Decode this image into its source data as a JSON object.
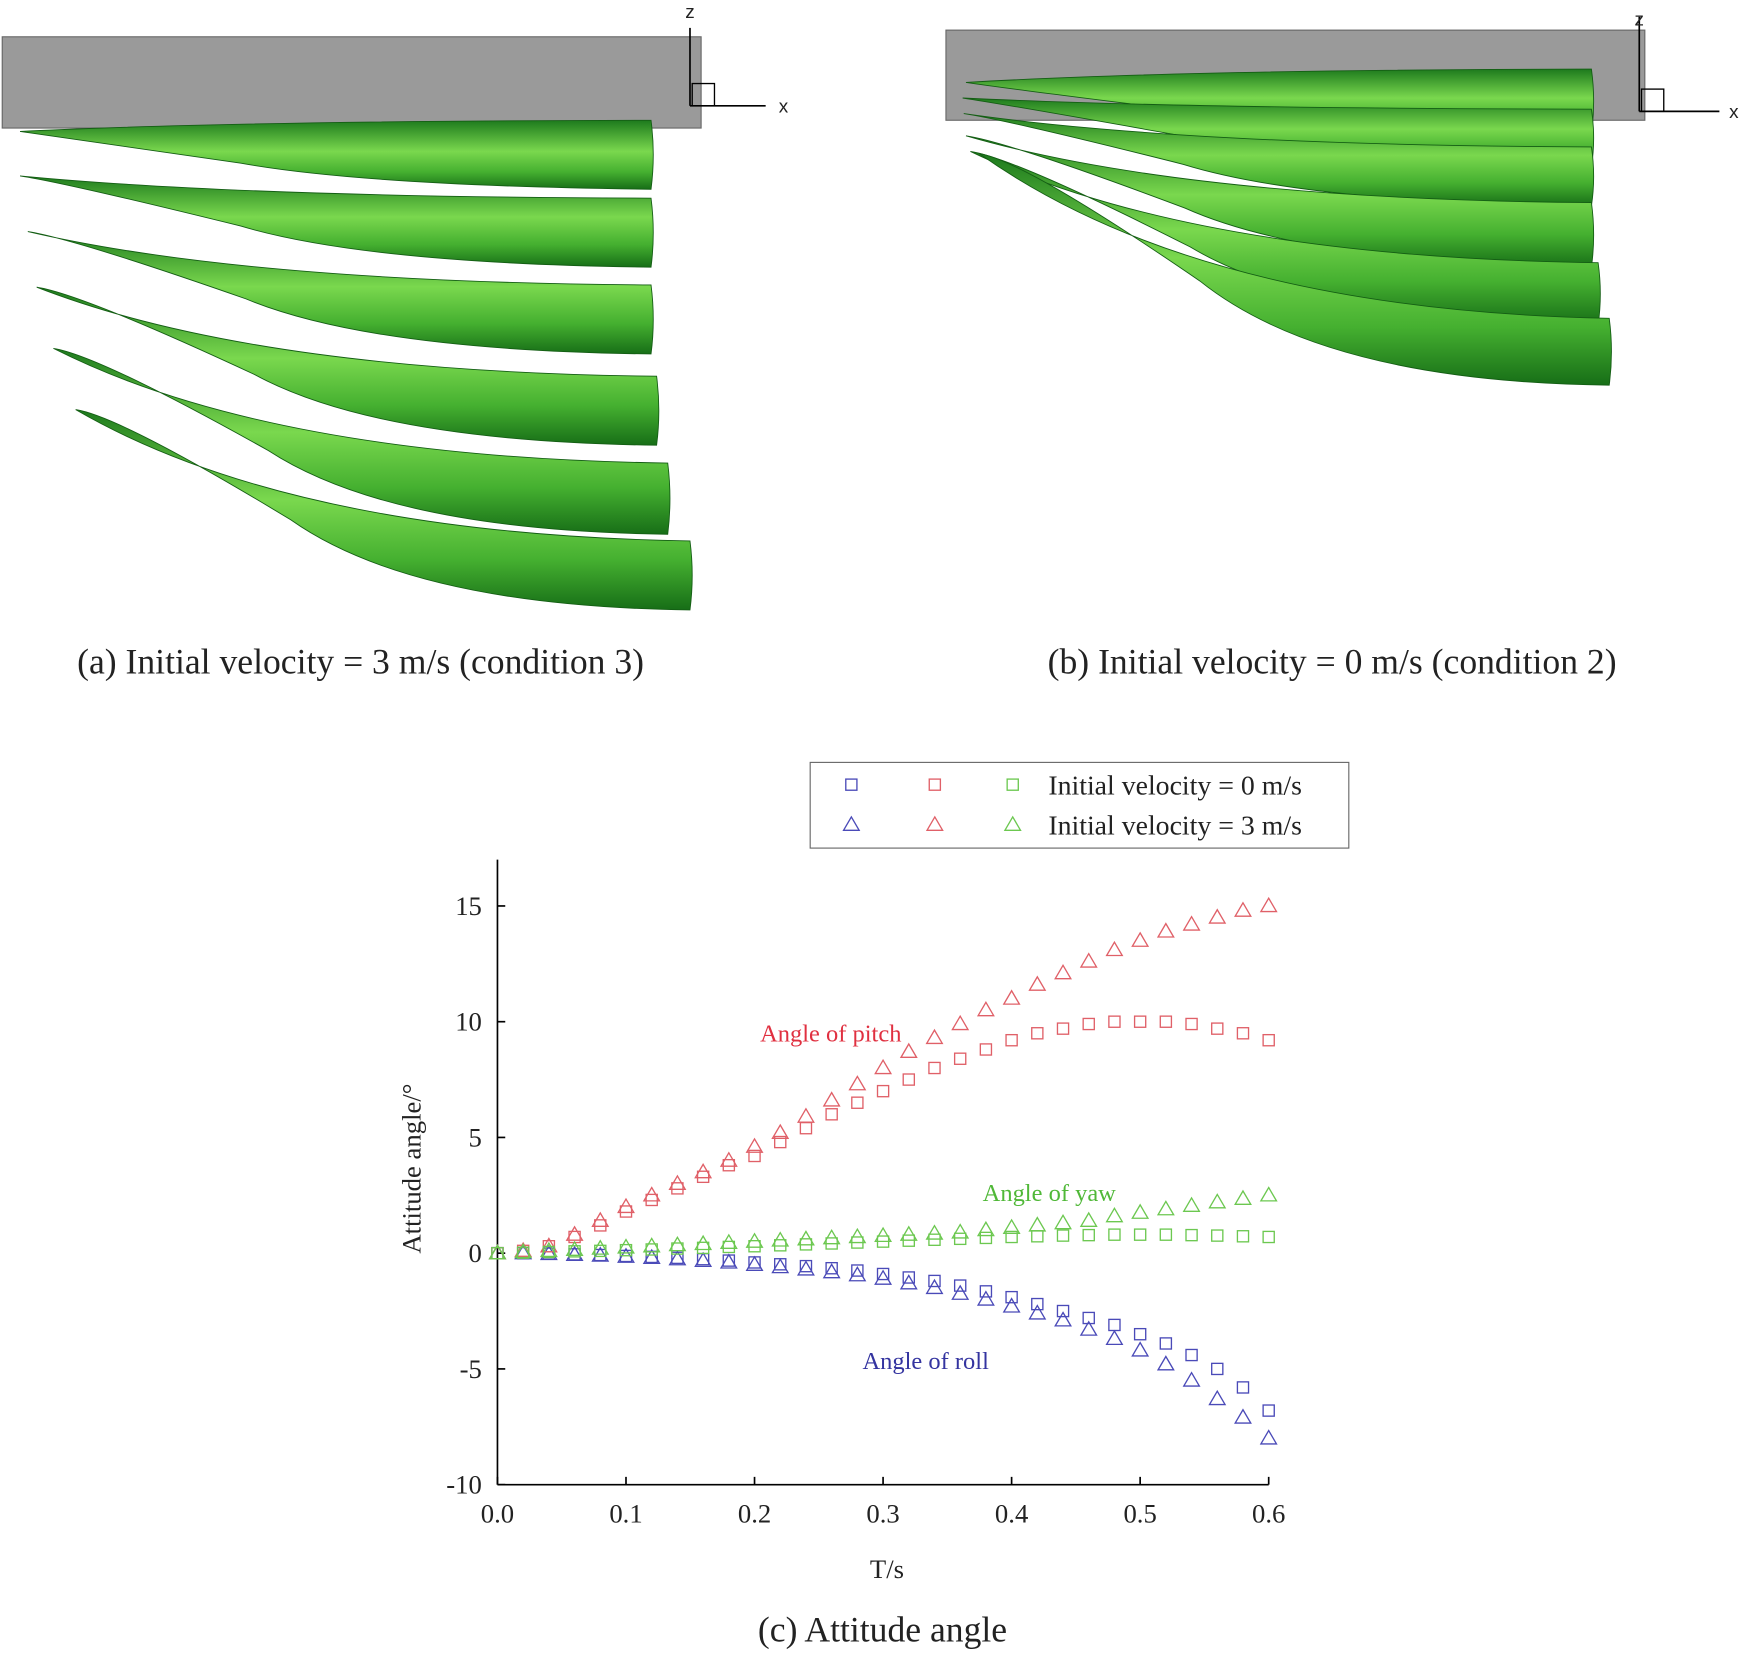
{
  "panels": [
    {
      "caption": "(a) Initial velocity = 3 m/s (condition 3)",
      "axes": [
        "z",
        "x"
      ]
    },
    {
      "caption": "(b) Initial velocity = 0 m/s (condition 2)",
      "axes": [
        "z",
        "x"
      ]
    }
  ],
  "chart_data": {
    "type": "scatter",
    "caption": "(c) Attitude angle",
    "xlabel": "T/s",
    "ylabel": "Attitude angle/°",
    "xlim": [
      0,
      0.6
    ],
    "ylim": [
      -10,
      17
    ],
    "xticks": [
      {
        "value": 0,
        "label": "0.0"
      },
      0.1,
      0.2,
      0.3,
      0.4,
      0.5,
      0.6
    ],
    "yticks": [
      -10,
      -5,
      0,
      5,
      10,
      15
    ],
    "legend": [
      {
        "label": "Initial velocity = 0 m/s",
        "marker": "square"
      },
      {
        "label": "Initial velocity = 3 m/s",
        "marker": "triangle"
      }
    ],
    "x": [
      0,
      0.02,
      0.04,
      0.06,
      0.08,
      0.1,
      0.12,
      0.14,
      0.16,
      0.18,
      0.2,
      0.22,
      0.24,
      0.26,
      0.28,
      0.3,
      0.32,
      0.34,
      0.36,
      0.38,
      0.4,
      0.42,
      0.44,
      0.46,
      0.48,
      0.5,
      0.52,
      0.54,
      0.56,
      0.58,
      0.6
    ],
    "series": [
      {
        "name": "Angle of roll",
        "color": "#4a4ab8",
        "label_color": "#3434a0",
        "conditions": [
          [
            0,
            0,
            -0.02,
            -0.05,
            -0.08,
            -0.12,
            -0.16,
            -0.2,
            -0.26,
            -0.32,
            -0.4,
            -0.48,
            -0.56,
            -0.65,
            -0.75,
            -0.9,
            -1.05,
            -1.2,
            -1.4,
            -1.65,
            -1.9,
            -2.2,
            -2.5,
            -2.8,
            -3.1,
            -3.5,
            -3.9,
            -4.4,
            -5.0,
            -5.8,
            -6.8
          ],
          [
            0,
            0,
            -0.03,
            -0.07,
            -0.1,
            -0.15,
            -0.2,
            -0.26,
            -0.33,
            -0.4,
            -0.5,
            -0.6,
            -0.7,
            -0.82,
            -0.95,
            -1.1,
            -1.3,
            -1.5,
            -1.75,
            -2.0,
            -2.3,
            -2.6,
            -2.9,
            -3.3,
            -3.7,
            -4.2,
            -4.8,
            -5.5,
            -6.3,
            -7.1,
            -8.0
          ]
        ]
      },
      {
        "name": "Angle of pitch",
        "color": "#e06068",
        "label_color": "#e03040",
        "conditions": [
          [
            0,
            0.1,
            0.3,
            0.7,
            1.2,
            1.8,
            2.3,
            2.8,
            3.3,
            3.8,
            4.2,
            4.8,
            5.4,
            6.0,
            6.5,
            7.0,
            7.5,
            8.0,
            8.4,
            8.8,
            9.2,
            9.5,
            9.7,
            9.9,
            10.0,
            10.0,
            10.0,
            9.9,
            9.7,
            9.5,
            9.2
          ],
          [
            0,
            0.1,
            0.3,
            0.8,
            1.4,
            2.0,
            2.5,
            3.0,
            3.5,
            4.0,
            4.6,
            5.2,
            5.9,
            6.6,
            7.3,
            8.0,
            8.7,
            9.3,
            9.9,
            10.5,
            11.0,
            11.6,
            12.1,
            12.6,
            13.1,
            13.5,
            13.9,
            14.2,
            14.5,
            14.8,
            15.0
          ]
        ]
      },
      {
        "name": "Angle of yaw",
        "color": "#6cc850",
        "label_color": "#50b838",
        "conditions": [
          [
            0,
            0.02,
            0.05,
            0.08,
            0.1,
            0.13,
            0.16,
            0.2,
            0.23,
            0.27,
            0.3,
            0.34,
            0.38,
            0.42,
            0.46,
            0.5,
            0.54,
            0.58,
            0.62,
            0.66,
            0.7,
            0.73,
            0.76,
            0.78,
            0.8,
            0.8,
            0.8,
            0.78,
            0.76,
            0.73,
            0.7
          ],
          [
            0,
            0.05,
            0.1,
            0.15,
            0.2,
            0.25,
            0.3,
            0.35,
            0.4,
            0.45,
            0.5,
            0.55,
            0.6,
            0.65,
            0.7,
            0.75,
            0.8,
            0.85,
            0.9,
            1.0,
            1.1,
            1.2,
            1.3,
            1.4,
            1.6,
            1.75,
            1.9,
            2.05,
            2.2,
            2.35,
            2.5
          ]
        ]
      }
    ]
  }
}
